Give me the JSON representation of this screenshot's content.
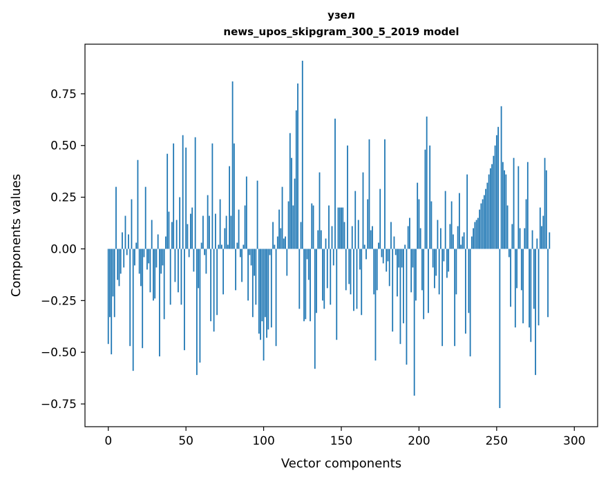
{
  "chart_data": {
    "type": "bar",
    "title": "узел",
    "subtitle": "news_upos_skipgram_300_5_2019 model",
    "xlabel": "Vector components",
    "ylabel": "Components values",
    "xlim": [
      -15,
      315
    ],
    "ylim": [
      -0.86,
      0.99
    ],
    "xticks": [
      0,
      50,
      100,
      150,
      200,
      250,
      300
    ],
    "yticks": [
      -0.75,
      -0.5,
      -0.25,
      0.0,
      0.25,
      0.5,
      0.75
    ],
    "ytick_labels": [
      "−0.75",
      "−0.50",
      "−0.25",
      "0.00",
      "0.25",
      "0.50",
      "0.75"
    ],
    "xtick_labels": [
      "0",
      "50",
      "100",
      "150",
      "200",
      "250",
      "300"
    ],
    "bar_color": "#1f77b4",
    "grid": false,
    "series": [
      {
        "values": [
          -0.46,
          -0.33,
          -0.51,
          -0.23,
          -0.33,
          0.3,
          -0.15,
          -0.18,
          -0.12,
          0.08,
          -0.09,
          0.16,
          -0.03,
          0.07,
          -0.47,
          0.24,
          -0.59,
          -0.08,
          0.03,
          0.43,
          -0.12,
          -0.18,
          -0.48,
          -0.04,
          0.3,
          -0.1,
          -0.07,
          -0.21,
          0.14,
          -0.25,
          -0.24,
          -0.09,
          0.07,
          -0.52,
          -0.12,
          -0.08,
          -0.34,
          0.06,
          0.46,
          0.18,
          -0.27,
          0.13,
          0.51,
          -0.16,
          0.14,
          -0.21,
          0.25,
          -0.27,
          0.55,
          -0.49,
          0.49,
          0.12,
          -0.04,
          0.17,
          0.2,
          -0.11,
          0.54,
          -0.61,
          -0.19,
          -0.55,
          0.03,
          0.16,
          -0.03,
          -0.12,
          0.26,
          0.16,
          -0.35,
          0.51,
          -0.4,
          0.17,
          -0.32,
          0.02,
          0.24,
          0.02,
          -0.22,
          0.1,
          0.16,
          0.02,
          0.4,
          0.16,
          0.81,
          0.51,
          -0.2,
          0.03,
          0.19,
          -0.04,
          -0.16,
          0.02,
          0.21,
          0.35,
          -0.25,
          -0.03,
          -0.08,
          -0.33,
          -0.13,
          -0.27,
          0.33,
          -0.41,
          -0.44,
          -0.35,
          -0.54,
          -0.33,
          -0.43,
          -0.39,
          -0.03,
          -0.38,
          0.13,
          0.02,
          -0.47,
          0.06,
          0.19,
          0.1,
          0.3,
          0.05,
          0.06,
          -0.13,
          0.23,
          0.56,
          0.44,
          0.21,
          0.34,
          0.67,
          0.8,
          -0.29,
          0.13,
          0.91,
          -0.35,
          -0.34,
          -0.05,
          -0.15,
          -0.35,
          0.22,
          0.21,
          -0.58,
          -0.31,
          0.09,
          0.37,
          0.09,
          -0.25,
          -0.29,
          0.05,
          -0.19,
          0.21,
          -0.27,
          0.11,
          -0.08,
          0.63,
          -0.44,
          0.2,
          0.2,
          0.2,
          0.2,
          0.13,
          -0.2,
          0.5,
          -0.17,
          -0.22,
          0.11,
          -0.3,
          0.28,
          -0.29,
          0.14,
          -0.1,
          -0.32,
          0.37,
          0.02,
          -0.05,
          0.24,
          0.53,
          0.09,
          0.11,
          -0.22,
          -0.54,
          -0.2,
          0.03,
          0.29,
          -0.04,
          -0.07,
          0.53,
          -0.11,
          -0.06,
          -0.18,
          0.13,
          -0.4,
          0.06,
          -0.03,
          -0.23,
          -0.09,
          -0.46,
          -0.09,
          -0.36,
          0.02,
          -0.56,
          0.11,
          0.15,
          -0.21,
          -0.09,
          -0.71,
          -0.25,
          0.32,
          0.24,
          0.1,
          -0.2,
          -0.34,
          0.48,
          0.64,
          -0.31,
          0.5,
          0.23,
          -0.09,
          -0.19,
          -0.13,
          0.14,
          -0.22,
          0.1,
          -0.47,
          -0.06,
          0.28,
          -0.14,
          -0.11,
          0.12,
          0.23,
          0.07,
          -0.47,
          -0.22,
          0.11,
          0.27,
          0.02,
          0.06,
          0.08,
          -0.41,
          0.36,
          -0.31,
          -0.52,
          0.06,
          0.1,
          0.13,
          0.14,
          0.15,
          0.19,
          0.22,
          0.24,
          0.26,
          0.29,
          0.32,
          0.36,
          0.39,
          0.41,
          0.45,
          0.5,
          0.55,
          0.59,
          -0.77,
          0.69,
          0.42,
          0.38,
          0.36,
          0.21,
          -0.04,
          -0.28,
          0.12,
          0.44,
          -0.38,
          -0.19,
          0.4,
          0.1,
          -0.2,
          -0.36,
          0.1,
          0.24,
          0.42,
          -0.38,
          -0.45,
          0.09,
          -0.29,
          -0.61,
          0.05,
          -0.37,
          0.2,
          0.11,
          0.16,
          0.44,
          0.38,
          -0.33,
          0.08
        ]
      }
    ]
  }
}
